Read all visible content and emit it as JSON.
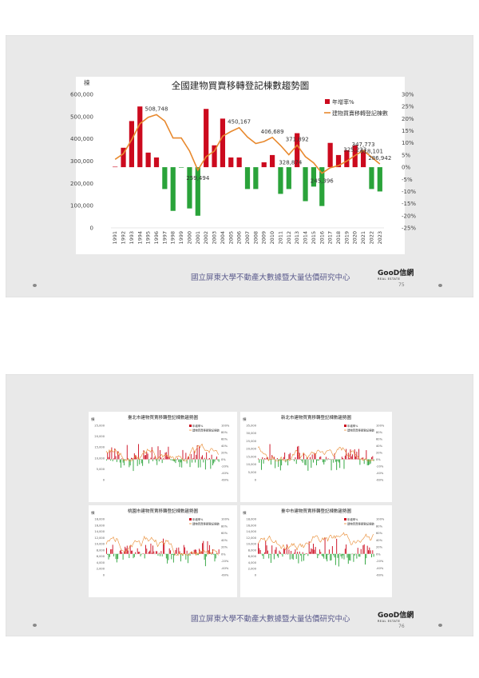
{
  "slides": [
    {
      "footer": "國立屏東大學不動產大數據暨大量估價研究中心",
      "page": "75",
      "logo": "GooD信網",
      "logo_sub": "REAL ESTATE"
    },
    {
      "footer": "國立屏東大學不動產大數據暨大量估價研究中心",
      "page": "76",
      "logo": "GooD信網",
      "logo_sub": "REAL ESTATE"
    }
  ],
  "colors": {
    "bar_pos": "#cc0a1e",
    "bar_neg": "#2aa33a",
    "line": "#e8892e"
  },
  "chart_data": [
    {
      "type": "bar",
      "title": "全國建物買賣移轉登記棟數趨勢圖",
      "ylabel": "棟",
      "ylim": [
        0,
        600000
      ],
      "y2lim": [
        -0.25,
        0.3
      ],
      "yticks": [
        "600,000",
        "500,000",
        "400,000",
        "300,000",
        "200,000",
        "100,000",
        "0"
      ],
      "y2ticks": [
        "30%",
        "25%",
        "20%",
        "15%",
        "10%",
        "5%",
        "0%",
        "-5%",
        "-10%",
        "-15%",
        "-20%",
        "-25%"
      ],
      "legend": [
        "年增率%",
        "建物買賣移轉登記棟數"
      ],
      "legend_position": "top-right",
      "categories": [
        "1991",
        "1992",
        "1993",
        "1994",
        "1995",
        "1996",
        "1997",
        "1998",
        "1999",
        "2000",
        "2001",
        "2002",
        "2003",
        "2004",
        "2005",
        "2006",
        "2007",
        "2008",
        "2009",
        "2010",
        "2011",
        "2012",
        "2013",
        "2014",
        "2015",
        "2016",
        "2017",
        "2018",
        "2019",
        "2020",
        "2021",
        "2022",
        "2023"
      ],
      "series": [
        {
          "name": "年增率%",
          "kind": "bar",
          "axis": "right",
          "values": [
            0.0,
            0.08,
            0.19,
            0.25,
            0.06,
            0.04,
            -0.09,
            -0.18,
            -0.002,
            -0.17,
            -0.2,
            0.24,
            0.09,
            0.2,
            0.04,
            0.04,
            -0.09,
            -0.09,
            0.02,
            0.05,
            -0.11,
            -0.09,
            0.14,
            -0.14,
            -0.08,
            -0.16,
            0.1,
            0.05,
            0.07,
            0.09,
            0.07,
            -0.09,
            -0.1
          ]
        },
        {
          "name": "建物買賣移轉登記棟數",
          "kind": "line",
          "axis": "left",
          "values": [
            308000,
            333000,
            396000,
            468000,
            497000,
            508748,
            480000,
            404000,
            404000,
            345000,
            259494,
            320000,
            345000,
            412000,
            433000,
            450167,
            408000,
            379000,
            388000,
            406689,
            370000,
            328874,
            371892,
            320000,
            292000,
            245396,
            270000,
            280000,
            300000,
            325223,
            347773,
            318101,
            286942
          ]
        }
      ],
      "data_labels": [
        {
          "index": 5,
          "text": "508,748"
        },
        {
          "index": 10,
          "text": "259,494"
        },
        {
          "index": 15,
          "text": "450,167"
        },
        {
          "index": 19,
          "text": "406,689"
        },
        {
          "index": 21,
          "text": "328,874"
        },
        {
          "index": 22,
          "text": "371,892"
        },
        {
          "index": 25,
          "text": "245,396"
        },
        {
          "index": 29,
          "text": "325,223"
        },
        {
          "index": 30,
          "text": "347,773"
        },
        {
          "index": 31,
          "text": "318,101"
        },
        {
          "index": 32,
          "text": "286,942"
        }
      ]
    },
    {
      "type": "bar",
      "title": "臺北市建物買賣移轉登記棟數趨勢圖",
      "ylabel": "棟",
      "yticks": [
        "25,000",
        "20,000",
        "15,000",
        "10,000",
        "5,000",
        "0"
      ],
      "y2ticks": [
        "100%",
        "80%",
        "60%",
        "40%",
        "20%",
        "0%",
        "-20%",
        "-40%",
        "-60%"
      ],
      "legend": [
        "年增率%",
        "建物買賣移轉登記棟數"
      ],
      "seed": 3
    },
    {
      "type": "bar",
      "title": "新北市建物買賣移轉登記棟數趨勢圖",
      "ylabel": "棟",
      "yticks": [
        "35,000",
        "30,000",
        "25,000",
        "20,000",
        "15,000",
        "10,000",
        "5,000",
        "0"
      ],
      "y2ticks": [
        "100%",
        "80%",
        "60%",
        "40%",
        "20%",
        "0%",
        "-20%",
        "-40%",
        "-60%"
      ],
      "legend": [
        "年增率%",
        "建物買賣移轉登記棟數"
      ],
      "seed": 7
    },
    {
      "type": "bar",
      "title": "桃園市建物買賣移轉登記棟數趨勢圖",
      "ylabel": "棟",
      "yticks": [
        "18,000",
        "16,000",
        "14,000",
        "12,000",
        "10,000",
        "8,000",
        "6,000",
        "4,000",
        "2,000",
        "0"
      ],
      "y2ticks": [
        "100%",
        "80%",
        "60%",
        "40%",
        "20%",
        "0%",
        "-20%",
        "-40%",
        "-60%"
      ],
      "legend": [
        "年增率%",
        "建物買賣移轉登記棟數"
      ],
      "seed": 11
    },
    {
      "type": "bar",
      "title": "臺中市建物買賣移轉登記棟數趨勢圖",
      "ylabel": "棟",
      "yticks": [
        "18,000",
        "16,000",
        "14,000",
        "12,000",
        "10,000",
        "8,000",
        "6,000",
        "4,000",
        "2,000",
        "0"
      ],
      "y2ticks": [
        "100%",
        "80%",
        "60%",
        "40%",
        "20%",
        "0%",
        "-20%",
        "-40%",
        "-60%"
      ],
      "legend": [
        "年增率%",
        "建物買賣移轉登記棟數"
      ],
      "seed": 19
    }
  ]
}
